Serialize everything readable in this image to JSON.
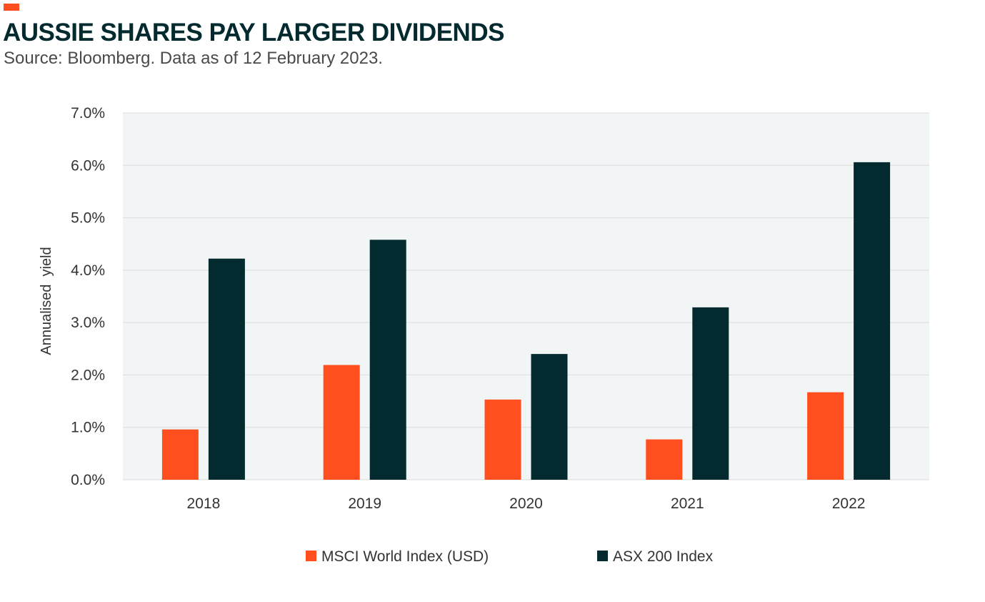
{
  "header": {
    "title": "AUSSIE SHARES PAY LARGER DIVIDENDS",
    "subtitle": "Source: Bloomberg. Data as of 12 February 2023."
  },
  "colors": {
    "accent": "#ff4f1f",
    "title": "#022a2f",
    "plot_background": "#f1f5f5",
    "gridline": "#dcdcdc",
    "text": "#333333"
  },
  "chart_data": {
    "type": "bar",
    "title": "AUSSIE SHARES PAY LARGER DIVIDENDS",
    "subtitle": "Source: Bloomberg. Data as of 12 February 2023.",
    "xlabel": "",
    "ylabel": "Annualised  yield",
    "categories": [
      "2018",
      "2019",
      "2020",
      "2021",
      "2022"
    ],
    "series": [
      {
        "name": "MSCI World Index (USD)",
        "color": "#ff4f1f",
        "values": [
          0.96,
          2.19,
          1.53,
          0.77,
          1.67
        ]
      },
      {
        "name": "ASX 200 Index",
        "color": "#022a2f",
        "values": [
          4.22,
          4.58,
          2.4,
          3.29,
          6.06
        ]
      }
    ],
    "ylim": [
      0,
      7
    ],
    "yticks": [
      {
        "value": 0,
        "label": "0.0%"
      },
      {
        "value": 1,
        "label": "1.0%"
      },
      {
        "value": 2,
        "label": "2.0%"
      },
      {
        "value": 3,
        "label": "3.0%"
      },
      {
        "value": 4,
        "label": "4.0%"
      },
      {
        "value": 5,
        "label": "5.0%"
      },
      {
        "value": 6,
        "label": "6.0%"
      },
      {
        "value": 7,
        "label": "7.0%"
      }
    ],
    "grid": true,
    "legend": "bottom-center"
  }
}
